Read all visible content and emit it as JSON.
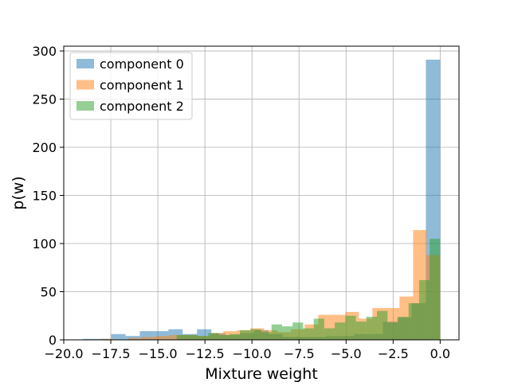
{
  "chart_data": {
    "type": "bar",
    "subtype": "overlaid-histogram",
    "title": "",
    "xlabel": "Mixture weight",
    "ylabel": "p(w)",
    "xlim": [
      -20,
      1
    ],
    "ylim": [
      0,
      305
    ],
    "x_ticks": [
      -20.0,
      -17.5,
      -15.0,
      -12.5,
      -10.0,
      -7.5,
      -5.0,
      -2.5,
      0.0
    ],
    "x_tick_labels": [
      "−20.0",
      "−17.5",
      "−15.0",
      "−12.5",
      "−10.0",
      "−7.5",
      "−5.0",
      "−2.5",
      "0.0"
    ],
    "y_ticks": [
      0,
      50,
      100,
      150,
      200,
      250,
      300
    ],
    "y_tick_labels": [
      "0",
      "50",
      "100",
      "150",
      "200",
      "250",
      "300"
    ],
    "grid": true,
    "legend_position": "top-left",
    "bar_opacity": 0.5,
    "series": [
      {
        "name": "component 0",
        "color": "#1f77b4",
        "bin_edges": [
          -19.0,
          -18.24,
          -17.48,
          -16.72,
          -15.96,
          -15.2,
          -14.44,
          -13.68,
          -12.92,
          -12.16,
          -11.4,
          -10.64,
          -9.88,
          -9.12,
          -8.36,
          -7.6,
          -6.84,
          -6.08,
          -5.32,
          -4.56,
          -3.8,
          -3.04,
          -2.28,
          -1.52,
          -0.76,
          0.0
        ],
        "values": [
          1,
          1,
          6,
          4,
          9,
          9,
          11,
          6,
          11,
          7,
          5,
          7,
          10,
          6,
          3,
          3,
          3,
          4,
          4,
          6,
          6,
          19,
          23,
          38,
          291
        ]
      },
      {
        "name": "component 1",
        "color": "#ff7f0e",
        "bin_edges": [
          -18.0,
          -17.28,
          -16.56,
          -15.84,
          -15.12,
          -14.4,
          -13.68,
          -12.96,
          -12.24,
          -11.52,
          -10.8,
          -10.08,
          -9.36,
          -8.64,
          -7.92,
          -7.2,
          -6.48,
          -5.76,
          -5.04,
          -4.32,
          -3.6,
          -2.88,
          -2.16,
          -1.44,
          -0.72,
          0.0
        ],
        "values": [
          1,
          0,
          2,
          3,
          4,
          5,
          5,
          4,
          7,
          9,
          10,
          12,
          10,
          8,
          11,
          16,
          26,
          26,
          29,
          22,
          33,
          33,
          45,
          114,
          88
        ]
      },
      {
        "name": "component 2",
        "color": "#2ca02c",
        "bin_edges": [
          -14.0,
          -13.44,
          -12.88,
          -12.32,
          -11.76,
          -11.2,
          -10.64,
          -10.08,
          -9.52,
          -8.96,
          -8.4,
          -7.84,
          -7.28,
          -6.72,
          -6.16,
          -5.6,
          -5.04,
          -4.48,
          -3.92,
          -3.36,
          -2.8,
          -2.24,
          -1.68,
          -1.12,
          -0.56,
          0.0
        ],
        "values": [
          5,
          5,
          4,
          7,
          5,
          6,
          10,
          11,
          8,
          16,
          14,
          18,
          12,
          22,
          12,
          18,
          25,
          19,
          24,
          30,
          18,
          24,
          38,
          62,
          105
        ]
      }
    ]
  }
}
